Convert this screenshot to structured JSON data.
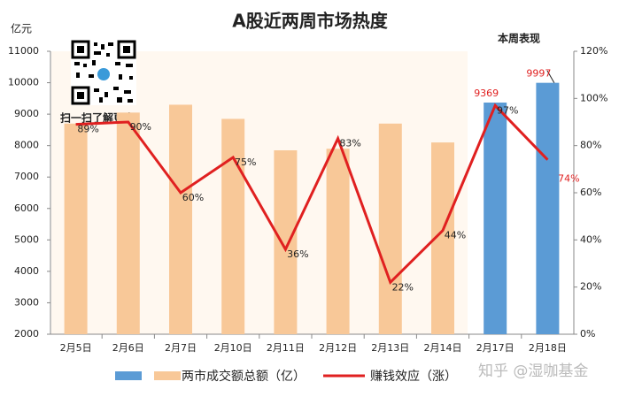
{
  "chart_data": {
    "type": "bar_line",
    "title": "A股近两周市场热度",
    "y_label": "亿元",
    "annotation": "本周表现",
    "qr_caption": "扫一扫了解更多",
    "watermark": "知乎 @湿咖基金",
    "categories": [
      "2月5日",
      "2月6日",
      "2月7日",
      "2月10日",
      "2月11日",
      "2月12日",
      "2月13日",
      "2月14日",
      "2月17日",
      "2月18日"
    ],
    "series": [
      {
        "name": "两市成交额总额（亿）",
        "type": "bar",
        "legend_colors": [
          "#5b9bd5",
          "#f8c898"
        ],
        "colors": [
          "#f8c898",
          "#f8c898",
          "#f8c898",
          "#f8c898",
          "#f8c898",
          "#f8c898",
          "#f8c898",
          "#f8c898",
          "#5b9bd5",
          "#5b9bd5"
        ],
        "values": [
          8700,
          9050,
          9300,
          8850,
          7850,
          7900,
          8700,
          8100,
          9369,
          9997
        ],
        "value_labels": [
          null,
          null,
          null,
          null,
          null,
          null,
          null,
          null,
          "9369",
          "9997"
        ]
      },
      {
        "name": "赚钱效应（涨）",
        "type": "line",
        "axis": "y2",
        "color": "#e02020",
        "values": [
          89,
          90,
          60,
          75,
          36,
          83,
          22,
          44,
          97,
          74
        ],
        "value_labels": [
          "89%",
          "90%",
          "60%",
          "75%",
          "36%",
          "83%",
          "22%",
          "44%",
          "97%",
          "74%"
        ]
      }
    ],
    "ylim": [
      2000,
      11000
    ],
    "yticks": [
      2000,
      3000,
      4000,
      5000,
      6000,
      7000,
      8000,
      9000,
      10000,
      11000
    ],
    "y2lim": [
      0,
      120
    ],
    "y2ticks": [
      {
        "value": 0,
        "label": "0%"
      },
      {
        "value": 20,
        "label": "20%"
      },
      {
        "value": 40,
        "label": "40%"
      },
      {
        "value": 60,
        "label": "60%"
      },
      {
        "value": 80,
        "label": "80%"
      },
      {
        "value": 100,
        "label": "100%"
      },
      {
        "value": 120,
        "label": "120%"
      }
    ]
  }
}
